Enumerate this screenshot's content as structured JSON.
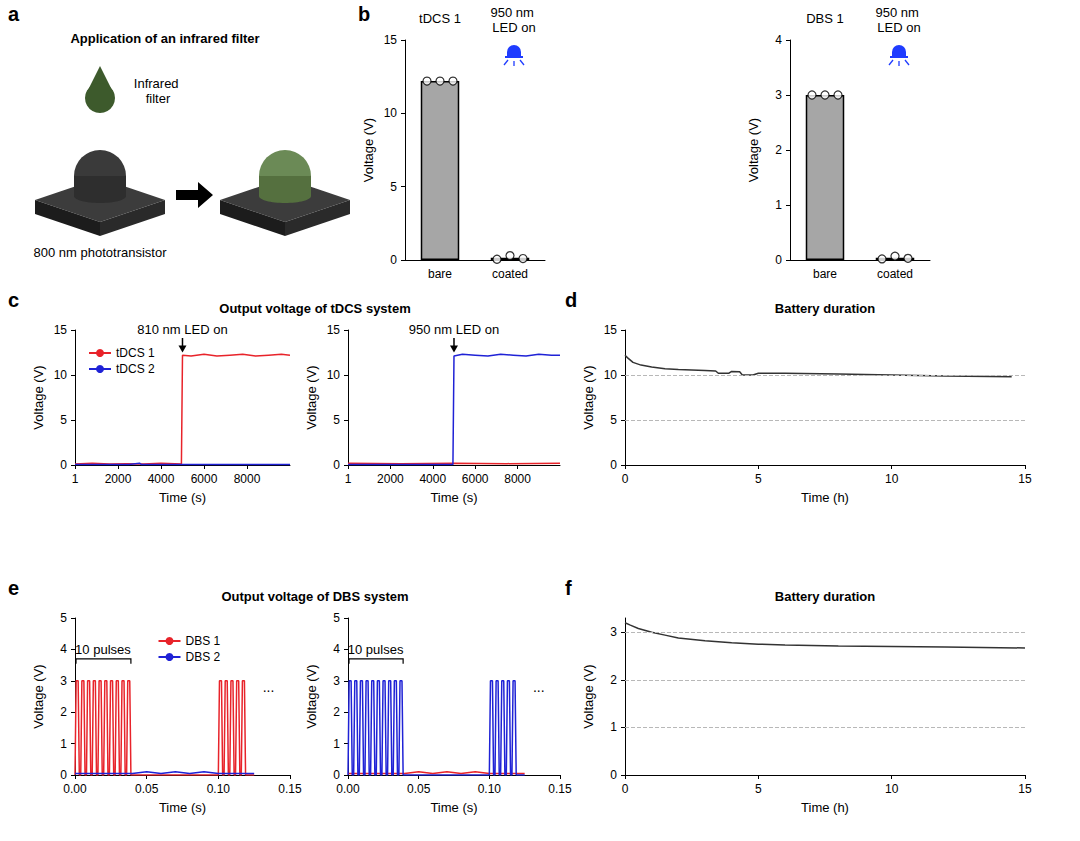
{
  "diagram": {
    "panel": "a",
    "title": "Application of an infrared filter",
    "drop_label": "Infrared filter",
    "device_label": "800 nm phototransistor"
  },
  "chart_data": [
    {
      "panel": "b",
      "type": "bar",
      "title": "tDCS 1",
      "annotation": "950 nm LED on",
      "categories": [
        "bare",
        "coated"
      ],
      "values": [
        12.2,
        0.15
      ],
      "points": [
        [
          12.2,
          12.2,
          12.2
        ],
        [
          0.05,
          0.3,
          0.1
        ]
      ],
      "color": "#a6a6a6",
      "ylabel": "Voltage (V)",
      "ylim": [
        0,
        15
      ],
      "yticks": [
        0,
        5,
        10,
        15
      ]
    },
    {
      "type": "bar",
      "title": "DBS 1",
      "annotation": "950 nm LED on",
      "categories": [
        "bare",
        "coated"
      ],
      "values": [
        3.0,
        0.04
      ],
      "points": [
        [
          3.0,
          3.0,
          3.0
        ],
        [
          0.02,
          0.07,
          0.03
        ]
      ],
      "color": "#a6a6a6",
      "ylabel": "Voltage (V)",
      "ylim": [
        0,
        4
      ],
      "yticks": [
        0,
        1,
        2,
        3,
        4
      ]
    },
    {
      "panel": "c",
      "type": "line",
      "title": "Output voltage of tDCS system",
      "legend": "upper left",
      "annotations": [
        {
          "text": "810 nm LED on",
          "x": 5000,
          "y": 12.5,
          "marker": "arrow"
        }
      ],
      "xlabel": "Time (s)",
      "ylabel": "Voltage (V)",
      "xlim": [
        1,
        10000
      ],
      "xticks": [
        1,
        2000,
        4000,
        6000,
        8000
      ],
      "ylim": [
        0,
        15
      ],
      "yticks": [
        0,
        5,
        10,
        15
      ],
      "series": [
        {
          "name": "tDCS 1",
          "color": "#e8232a",
          "x": [
            1,
            800,
            1600,
            2400,
            3200,
            4000,
            4950,
            5000,
            5400,
            6000,
            6600,
            7200,
            7800,
            8400,
            9000,
            9600,
            10000
          ],
          "values": [
            0.1,
            0.2,
            0.1,
            0.15,
            0.1,
            0.2,
            0.1,
            12.2,
            12.1,
            12.3,
            12.1,
            12.2,
            12.3,
            12.1,
            12.2,
            12.3,
            12.2
          ]
        },
        {
          "name": "tDCS 2",
          "color": "#1f22d6",
          "x": [
            1,
            2500,
            3000,
            3100,
            5000,
            7500,
            10000
          ],
          "values": [
            0.05,
            0.05,
            0.2,
            0.05,
            0.05,
            0.05,
            0.05
          ]
        }
      ]
    },
    {
      "type": "line",
      "annotations": [
        {
          "text": "950 nm LED on",
          "x": 5000,
          "y": 12.5,
          "marker": "arrow"
        }
      ],
      "xlabel": "Time (s)",
      "ylabel": "Voltage (V)",
      "xlim": [
        1,
        10000
      ],
      "xticks": [
        1,
        2000,
        4000,
        6000,
        8000
      ],
      "ylim": [
        0,
        15
      ],
      "yticks": [
        0,
        5,
        10,
        15
      ],
      "series": [
        {
          "name": "tDCS 1",
          "color": "#e8232a",
          "x": [
            1,
            2500,
            5000,
            7500,
            10000
          ],
          "values": [
            0.2,
            0.15,
            0.2,
            0.15,
            0.2
          ]
        },
        {
          "name": "tDCS 2",
          "color": "#1f22d6",
          "x": [
            1,
            4950,
            5000,
            5400,
            6000,
            6600,
            7200,
            7800,
            8400,
            9000,
            9600,
            10000
          ],
          "values": [
            0.05,
            0.05,
            12.1,
            12.3,
            12.2,
            12.1,
            12.3,
            12.2,
            12.1,
            12.3,
            12.2,
            12.2
          ]
        }
      ]
    },
    {
      "panel": "d",
      "type": "line",
      "title": "Battery duration",
      "grid": true,
      "xlabel": "Time (h)",
      "ylabel": "Voltage (V)",
      "xlim": [
        0,
        15
      ],
      "xticks": [
        0,
        5,
        10,
        15
      ],
      "ylim": [
        0,
        15
      ],
      "yticks": [
        0,
        5,
        10,
        15
      ],
      "color": "#333333",
      "x": [
        0,
        0.1,
        0.3,
        0.6,
        1,
        1.5,
        2,
        2.5,
        3,
        3.4,
        3.5,
        3.9,
        4.0,
        4.3,
        4.4,
        4.8,
        5,
        6,
        8,
        10,
        12,
        14.5
      ],
      "values": [
        12.2,
        11.9,
        11.4,
        11.1,
        10.9,
        10.7,
        10.6,
        10.55,
        10.5,
        10.45,
        10.2,
        10.2,
        10.4,
        10.35,
        10.0,
        10.0,
        10.2,
        10.2,
        10.1,
        10.0,
        9.9,
        9.8
      ]
    },
    {
      "panel": "e",
      "type": "line",
      "title": "Output voltage of DBS system",
      "legend": "upper center",
      "bracket": {
        "text": "10 pulses",
        "x": [
          0,
          0.039
        ],
        "y": 3.7
      },
      "annotations": [
        {
          "text": "...",
          "x": 0.135,
          "y": 2.8
        }
      ],
      "xlabel": "Time (s)",
      "ylabel": "Voltage (V)",
      "xlim": [
        0,
        0.15
      ],
      "xticks": [
        {
          "value": 0,
          "label": "0.00"
        },
        0.05,
        {
          "value": 0.1,
          "label": "0.10"
        },
        {
          "value": 0.15,
          "label": "0.15"
        }
      ],
      "ylim": [
        0,
        5
      ],
      "yticks": [
        0,
        1,
        2,
        3,
        4,
        5
      ],
      "series": [
        {
          "name": "DBS 1",
          "color": "#e8232a",
          "x": [
            0,
            0.0008,
            0.0022,
            0.003,
            0.004,
            0.0048,
            0.0062,
            0.007,
            0.008,
            0.0088,
            0.0102,
            0.011,
            0.012,
            0.0128,
            0.0142,
            0.015,
            0.016,
            0.0168,
            0.0182,
            0.019,
            0.02,
            0.0208,
            0.0222,
            0.023,
            0.024,
            0.0248,
            0.0262,
            0.027,
            0.028,
            0.0288,
            0.0302,
            0.031,
            0.032,
            0.0328,
            0.0342,
            0.035,
            0.036,
            0.0368,
            0.0382,
            0.039,
            0.1,
            0.1008,
            0.1022,
            0.103,
            0.104,
            0.1048,
            0.1062,
            0.107,
            0.108,
            0.1088,
            0.1102,
            0.111,
            0.112,
            0.1128,
            0.1142,
            0.115,
            0.116,
            0.1168,
            0.1182,
            0.119,
            0.125
          ],
          "values": [
            0,
            3,
            3,
            0,
            0,
            3,
            3,
            0,
            0,
            3,
            3,
            0,
            0,
            3,
            3,
            0,
            0,
            3,
            3,
            0,
            0,
            3,
            3,
            0,
            0,
            3,
            3,
            0,
            0,
            3,
            3,
            0,
            0,
            3,
            3,
            0,
            0,
            3,
            3,
            0,
            0,
            3,
            3,
            0,
            0,
            3,
            3,
            0,
            0,
            3,
            3,
            0,
            0,
            3,
            3,
            0,
            0,
            3,
            3,
            0,
            0
          ]
        },
        {
          "name": "DBS 2",
          "color": "#1f22d6",
          "x": [
            0,
            0.04,
            0.05,
            0.06,
            0.07,
            0.08,
            0.09,
            0.1,
            0.125
          ],
          "values": [
            0.05,
            0.05,
            0.1,
            0.05,
            0.1,
            0.05,
            0.1,
            0.05,
            0.05
          ]
        }
      ]
    },
    {
      "type": "line",
      "bracket": {
        "text": "10 pulses",
        "x": [
          0,
          0.039
        ],
        "y": 3.7
      },
      "annotations": [
        {
          "text": "...",
          "x": 0.135,
          "y": 2.8
        }
      ],
      "xlabel": "Time (s)",
      "ylabel": "Voltage (V)",
      "xlim": [
        0,
        0.15
      ],
      "xticks": [
        {
          "value": 0,
          "label": "0.00"
        },
        0.05,
        {
          "value": 0.1,
          "label": "0.10"
        },
        {
          "value": 0.15,
          "label": "0.15"
        }
      ],
      "ylim": [
        0,
        5
      ],
      "yticks": [
        0,
        1,
        2,
        3,
        4,
        5
      ],
      "series": [
        {
          "name": "DBS 1",
          "color": "#e8232a",
          "x": [
            0,
            0.04,
            0.05,
            0.06,
            0.07,
            0.08,
            0.09,
            0.1,
            0.125
          ],
          "values": [
            0.05,
            0.05,
            0.1,
            0.05,
            0.1,
            0.05,
            0.1,
            0.05,
            0.05
          ]
        },
        {
          "name": "DBS 2",
          "color": "#1f22d6",
          "x": [
            0,
            0.0008,
            0.0022,
            0.003,
            0.004,
            0.0048,
            0.0062,
            0.007,
            0.008,
            0.0088,
            0.0102,
            0.011,
            0.012,
            0.0128,
            0.0142,
            0.015,
            0.016,
            0.0168,
            0.0182,
            0.019,
            0.02,
            0.0208,
            0.0222,
            0.023,
            0.024,
            0.0248,
            0.0262,
            0.027,
            0.028,
            0.0288,
            0.0302,
            0.031,
            0.032,
            0.0328,
            0.0342,
            0.035,
            0.036,
            0.0368,
            0.0382,
            0.039,
            0.1,
            0.1008,
            0.1022,
            0.103,
            0.104,
            0.1048,
            0.1062,
            0.107,
            0.108,
            0.1088,
            0.1102,
            0.111,
            0.112,
            0.1128,
            0.1142,
            0.115,
            0.116,
            0.1168,
            0.1182,
            0.119,
            0.125
          ],
          "values": [
            0,
            3,
            3,
            0,
            0,
            3,
            3,
            0,
            0,
            3,
            3,
            0,
            0,
            3,
            3,
            0,
            0,
            3,
            3,
            0,
            0,
            3,
            3,
            0,
            0,
            3,
            3,
            0,
            0,
            3,
            3,
            0,
            0,
            3,
            3,
            0,
            0,
            3,
            3,
            0,
            0,
            3,
            3,
            0,
            0,
            3,
            3,
            0,
            0,
            3,
            3,
            0,
            0,
            3,
            3,
            0,
            0,
            3,
            3,
            0,
            0
          ]
        }
      ]
    },
    {
      "panel": "f",
      "type": "line",
      "title": "Battery duration",
      "grid": true,
      "xlabel": "Time (h)",
      "ylabel": "Voltage (V)",
      "xlim": [
        0,
        15
      ],
      "xticks": [
        0,
        5,
        10,
        15
      ],
      "ylim": [
        0,
        3.3
      ],
      "yticks": [
        0,
        1,
        2,
        3
      ],
      "color": "#333333",
      "x": [
        0,
        0.2,
        0.5,
        1,
        1.5,
        2,
        3,
        4,
        5,
        6,
        8,
        10,
        12,
        15
      ],
      "values": [
        3.2,
        3.15,
        3.08,
        3.0,
        2.94,
        2.88,
        2.82,
        2.78,
        2.75,
        2.73,
        2.71,
        2.7,
        2.69,
        2.67
      ]
    }
  ]
}
